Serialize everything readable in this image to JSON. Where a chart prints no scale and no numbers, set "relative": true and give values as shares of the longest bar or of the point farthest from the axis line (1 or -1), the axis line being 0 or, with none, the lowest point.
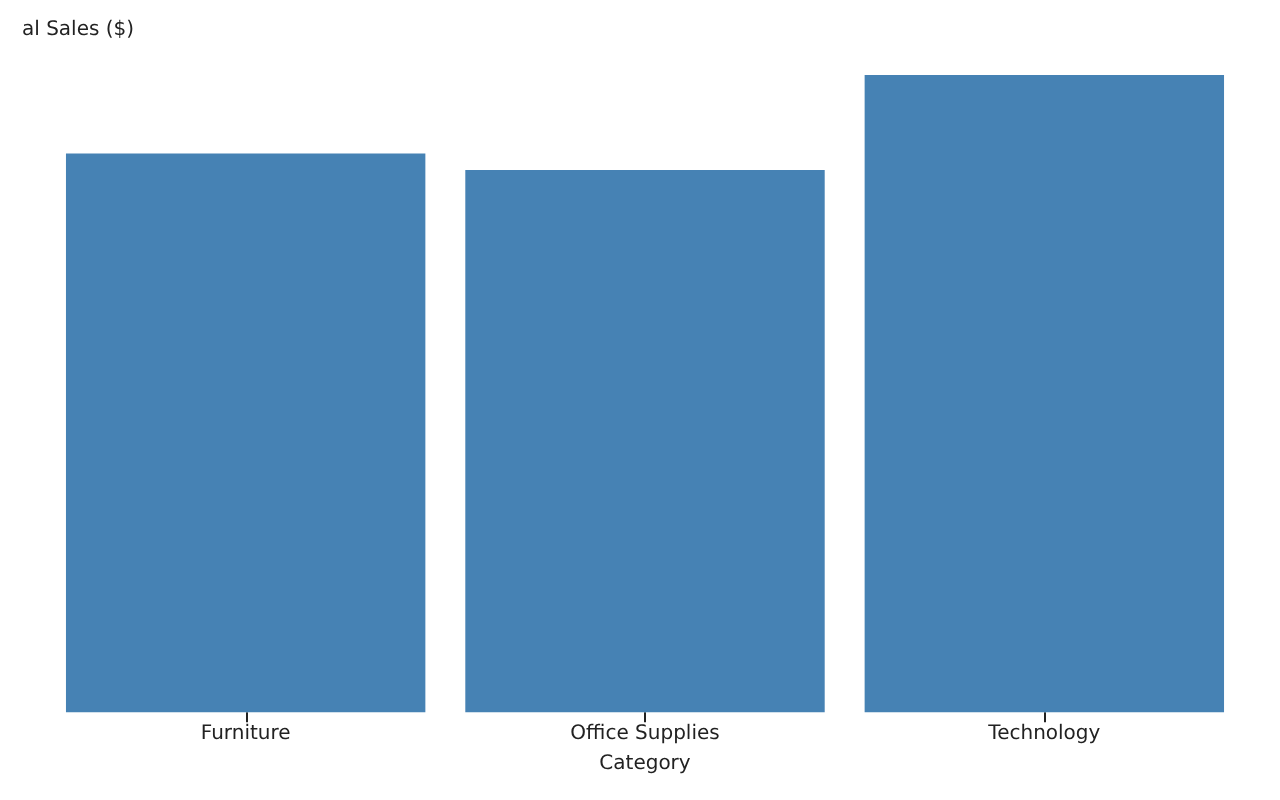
{
  "chart_data": {
    "type": "bar",
    "relative": true,
    "ylabel": "al Sales ($)",
    "xlabel": "Category",
    "categories": [
      "Furniture",
      "Office Supplies",
      "Technology"
    ],
    "values": [
      0.877,
      0.851,
      1
    ],
    "color": "#4682b4",
    "grid": false
  }
}
